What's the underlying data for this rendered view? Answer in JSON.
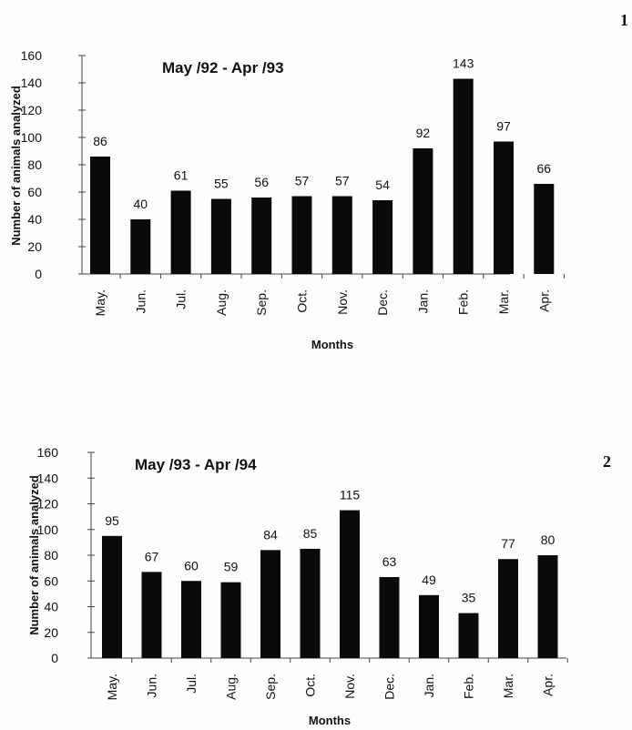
{
  "figure_numbers": [
    "1",
    "2"
  ],
  "chart_data": [
    {
      "type": "bar",
      "title": "May /92 - Apr /93",
      "xlabel": "Months",
      "ylabel": "Number of animals analyzed",
      "categories": [
        "May.",
        "Jun.",
        "Jul.",
        "Aug.",
        "Sep.",
        "Oct.",
        "Nov.",
        "Dec.",
        "Jan.",
        "Feb.",
        "Mar.",
        "Apr."
      ],
      "values": [
        86,
        40,
        61,
        55,
        56,
        57,
        57,
        54,
        92,
        143,
        97,
        66
      ],
      "data_labels": [
        "86",
        "40",
        "61",
        "55",
        "56",
        "57",
        "57",
        "54",
        "92",
        "143",
        "97",
        "66"
      ],
      "yticks": [
        "0",
        "20",
        "40",
        "60",
        "80",
        "100",
        "120",
        "140",
        "160"
      ],
      "ylim": [
        0,
        160
      ],
      "grid": false,
      "bar_color": "#0a0a0a"
    },
    {
      "type": "bar",
      "title": "May /93 - Apr /94",
      "xlabel": "Months",
      "ylabel": "Number of animals analyzed",
      "categories": [
        "May.",
        "Jun.",
        "Jul.",
        "Aug.",
        "Sep.",
        "Oct.",
        "Nov.",
        "Dec.",
        "Jan.",
        "Feb.",
        "Mar.",
        "Apr."
      ],
      "values": [
        95,
        67,
        60,
        59,
        84,
        85,
        115,
        63,
        49,
        35,
        77,
        80
      ],
      "data_labels": [
        "95",
        "67",
        "60",
        "59",
        "84",
        "85",
        "115",
        "63",
        "49",
        "35",
        "77",
        "80"
      ],
      "yticks": [
        "0",
        "20",
        "40",
        "60",
        "80",
        "100",
        "120",
        "140",
        "160"
      ],
      "ylim": [
        0,
        160
      ],
      "grid": false,
      "bar_color": "#0a0a0a"
    }
  ]
}
